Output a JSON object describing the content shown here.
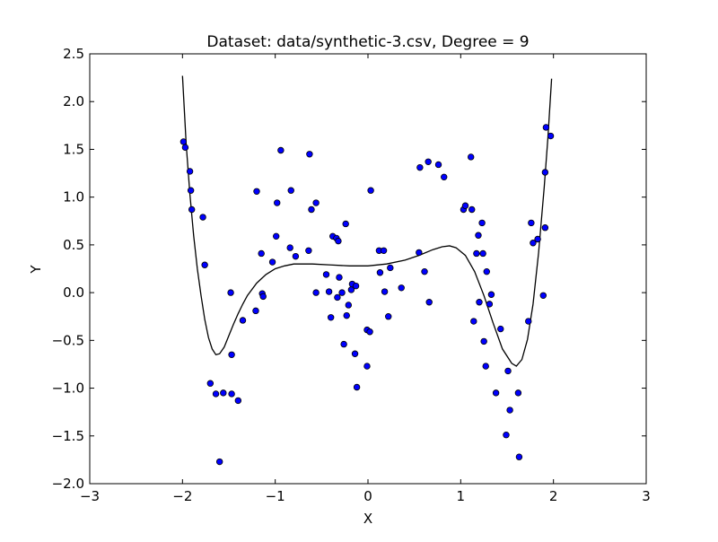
{
  "chart_data": {
    "type": "scatter",
    "title": "Dataset: data/synthetic-3.csv, Degree = 9",
    "xlabel": "X",
    "ylabel": "Y",
    "xlim": [
      -3,
      3
    ],
    "ylim": [
      -2.0,
      2.5
    ],
    "xticks": [
      -3,
      -2,
      -1,
      0,
      1,
      2,
      3
    ],
    "xtick_labels": [
      "−3",
      "−2",
      "−1",
      "0",
      "1",
      "2",
      "3"
    ],
    "yticks": [
      -2.0,
      -1.5,
      -1.0,
      -0.5,
      0.0,
      0.5,
      1.0,
      1.5,
      2.0,
      2.5
    ],
    "ytick_labels": [
      "−2.0",
      "−1.5",
      "−1.0",
      "−0.5",
      "0.0",
      "0.5",
      "1.0",
      "1.5",
      "2.0",
      "2.5"
    ],
    "grid": false,
    "colors": {
      "points": "#0000ff",
      "point_edge": "#000000",
      "fit_line": "#000000",
      "axes": "#000000",
      "background": "#ffffff"
    },
    "series": [
      {
        "kind": "scatter",
        "points": [
          [
            -1.99,
            1.58
          ],
          [
            -1.97,
            1.52
          ],
          [
            -1.92,
            1.27
          ],
          [
            -1.91,
            1.07
          ],
          [
            -1.9,
            0.87
          ],
          [
            -1.78,
            0.79
          ],
          [
            -1.76,
            0.29
          ],
          [
            -1.7,
            -0.95
          ],
          [
            -1.64,
            -1.06
          ],
          [
            -1.6,
            -1.77
          ],
          [
            -1.56,
            -1.05
          ],
          [
            -1.48,
            0.0
          ],
          [
            -1.47,
            -1.06
          ],
          [
            -1.47,
            -0.65
          ],
          [
            -1.4,
            -1.13
          ],
          [
            -1.35,
            -0.29
          ],
          [
            -1.21,
            -0.19
          ],
          [
            -1.2,
            1.06
          ],
          [
            -1.15,
            0.41
          ],
          [
            -1.14,
            -0.01
          ],
          [
            -1.13,
            -0.04
          ],
          [
            -1.03,
            0.32
          ],
          [
            -0.99,
            0.59
          ],
          [
            -0.98,
            0.94
          ],
          [
            -0.94,
            1.49
          ],
          [
            -0.84,
            0.47
          ],
          [
            -0.83,
            1.07
          ],
          [
            -0.78,
            0.38
          ],
          [
            -0.64,
            0.44
          ],
          [
            -0.63,
            1.45
          ],
          [
            -0.61,
            0.87
          ],
          [
            -0.56,
            0.94
          ],
          [
            -0.56,
            0.0
          ],
          [
            -0.45,
            0.19
          ],
          [
            -0.42,
            0.01
          ],
          [
            -0.4,
            -0.26
          ],
          [
            -0.38,
            0.59
          ],
          [
            -0.34,
            0.57
          ],
          [
            -0.33,
            -0.05
          ],
          [
            -0.32,
            0.54
          ],
          [
            -0.31,
            0.16
          ],
          [
            -0.28,
            0.0
          ],
          [
            -0.26,
            -0.54
          ],
          [
            -0.24,
            0.72
          ],
          [
            -0.23,
            -0.24
          ],
          [
            -0.21,
            -0.13
          ],
          [
            -0.18,
            0.03
          ],
          [
            -0.17,
            0.09
          ],
          [
            -0.14,
            -0.64
          ],
          [
            -0.13,
            0.07
          ],
          [
            -0.12,
            -0.99
          ],
          [
            -0.01,
            -0.39
          ],
          [
            -0.01,
            -0.77
          ],
          [
            0.02,
            -0.41
          ],
          [
            0.03,
            1.07
          ],
          [
            0.12,
            0.44
          ],
          [
            0.13,
            0.21
          ],
          [
            0.17,
            0.44
          ],
          [
            0.18,
            0.01
          ],
          [
            0.22,
            -0.25
          ],
          [
            0.24,
            0.26
          ],
          [
            0.36,
            0.05
          ],
          [
            0.55,
            0.42
          ],
          [
            0.56,
            1.31
          ],
          [
            0.61,
            0.22
          ],
          [
            0.65,
            1.37
          ],
          [
            0.66,
            -0.1
          ],
          [
            0.76,
            1.34
          ],
          [
            0.82,
            1.21
          ],
          [
            1.03,
            0.87
          ],
          [
            1.05,
            0.91
          ],
          [
            1.11,
            1.42
          ],
          [
            1.12,
            0.87
          ],
          [
            1.14,
            -0.3
          ],
          [
            1.17,
            0.41
          ],
          [
            1.19,
            0.6
          ],
          [
            1.2,
            -0.1
          ],
          [
            1.23,
            0.73
          ],
          [
            1.24,
            0.41
          ],
          [
            1.25,
            -0.51
          ],
          [
            1.27,
            -0.77
          ],
          [
            1.28,
            0.22
          ],
          [
            1.31,
            -0.12
          ],
          [
            1.33,
            -0.02
          ],
          [
            1.38,
            -1.05
          ],
          [
            1.43,
            -0.38
          ],
          [
            1.49,
            -1.49
          ],
          [
            1.51,
            -0.82
          ],
          [
            1.53,
            -1.23
          ],
          [
            1.62,
            -1.05
          ],
          [
            1.63,
            -1.72
          ],
          [
            1.73,
            -0.3
          ],
          [
            1.76,
            0.73
          ],
          [
            1.78,
            0.52
          ],
          [
            1.83,
            0.56
          ],
          [
            1.89,
            -0.03
          ],
          [
            1.91,
            1.26
          ],
          [
            1.91,
            0.68
          ],
          [
            1.92,
            1.73
          ],
          [
            1.97,
            1.64
          ]
        ]
      },
      {
        "kind": "line",
        "points": [
          [
            -2.0,
            2.27
          ],
          [
            -1.96,
            1.55
          ],
          [
            -1.92,
            1.03
          ],
          [
            -1.88,
            0.6
          ],
          [
            -1.84,
            0.25
          ],
          [
            -1.8,
            -0.03
          ],
          [
            -1.76,
            -0.28
          ],
          [
            -1.72,
            -0.47
          ],
          [
            -1.68,
            -0.59
          ],
          [
            -1.64,
            -0.65
          ],
          [
            -1.6,
            -0.64
          ],
          [
            -1.55,
            -0.57
          ],
          [
            -1.5,
            -0.45
          ],
          [
            -1.45,
            -0.33
          ],
          [
            -1.4,
            -0.22
          ],
          [
            -1.35,
            -0.12
          ],
          [
            -1.3,
            -0.03
          ],
          [
            -1.2,
            0.1
          ],
          [
            -1.1,
            0.19
          ],
          [
            -1.0,
            0.25
          ],
          [
            -0.9,
            0.28
          ],
          [
            -0.8,
            0.3
          ],
          [
            -0.7,
            0.3
          ],
          [
            -0.6,
            0.3
          ],
          [
            -0.4,
            0.29
          ],
          [
            -0.2,
            0.28
          ],
          [
            0.0,
            0.28
          ],
          [
            0.2,
            0.3
          ],
          [
            0.4,
            0.34
          ],
          [
            0.55,
            0.39
          ],
          [
            0.7,
            0.45
          ],
          [
            0.8,
            0.48
          ],
          [
            0.88,
            0.49
          ],
          [
            0.95,
            0.47
          ],
          [
            1.05,
            0.39
          ],
          [
            1.15,
            0.22
          ],
          [
            1.25,
            -0.03
          ],
          [
            1.35,
            -0.32
          ],
          [
            1.45,
            -0.59
          ],
          [
            1.55,
            -0.74
          ],
          [
            1.6,
            -0.77
          ],
          [
            1.66,
            -0.7
          ],
          [
            1.72,
            -0.49
          ],
          [
            1.78,
            -0.12
          ],
          [
            1.84,
            0.42
          ],
          [
            1.9,
            1.1
          ],
          [
            1.94,
            1.62
          ],
          [
            1.98,
            2.24
          ]
        ]
      }
    ]
  }
}
